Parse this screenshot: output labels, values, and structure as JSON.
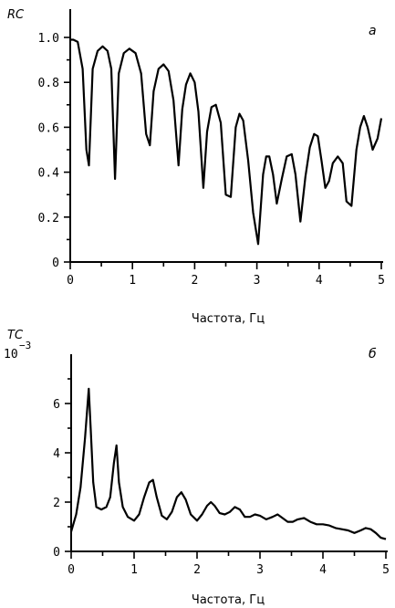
{
  "chart_data": [
    {
      "type": "line",
      "panel_letter": "а",
      "ylabel": "RC",
      "xlabel": "Частота, Гц",
      "xlim": [
        0,
        5
      ],
      "ylim": [
        0,
        1.0
      ],
      "x_ticks": [
        0,
        1,
        2,
        3,
        4,
        5
      ],
      "x_tick_labels": [
        "0",
        "1",
        "2",
        "3",
        "4",
        "5"
      ],
      "y_ticks": [
        0,
        0.2,
        0.4,
        0.6,
        0.8,
        1.0
      ],
      "y_tick_labels": [
        "0",
        "0.2",
        "0.4",
        "0.6",
        "0.8",
        "1.0"
      ],
      "grid": false,
      "series": [
        {
          "x": [
            0.0,
            0.05,
            0.12,
            0.2,
            0.26,
            0.3,
            0.36,
            0.44,
            0.52,
            0.6,
            0.66,
            0.72,
            0.78,
            0.86,
            0.95,
            1.05,
            1.14,
            1.22,
            1.28,
            1.34,
            1.42,
            1.5,
            1.58,
            1.66,
            1.74,
            1.8,
            1.86,
            1.93,
            2.0,
            2.06,
            2.14,
            2.2,
            2.27,
            2.34,
            2.42,
            2.5,
            2.58,
            2.66,
            2.72,
            2.78,
            2.86,
            2.94,
            3.02,
            3.1,
            3.15,
            3.2,
            3.26,
            3.32,
            3.4,
            3.48,
            3.56,
            3.62,
            3.7,
            3.78,
            3.85,
            3.92,
            3.98,
            4.04,
            4.1,
            4.16,
            4.22,
            4.3,
            4.38,
            4.44,
            4.52,
            4.6,
            4.66,
            4.72,
            4.78,
            4.86,
            4.94,
            5.0
          ],
          "y": [
            0.99,
            0.99,
            0.98,
            0.86,
            0.5,
            0.43,
            0.86,
            0.94,
            0.96,
            0.94,
            0.86,
            0.37,
            0.84,
            0.93,
            0.95,
            0.93,
            0.84,
            0.57,
            0.52,
            0.76,
            0.86,
            0.88,
            0.85,
            0.72,
            0.43,
            0.68,
            0.79,
            0.84,
            0.8,
            0.67,
            0.33,
            0.58,
            0.69,
            0.7,
            0.62,
            0.3,
            0.29,
            0.6,
            0.66,
            0.63,
            0.45,
            0.22,
            0.08,
            0.39,
            0.47,
            0.47,
            0.39,
            0.26,
            0.37,
            0.47,
            0.48,
            0.39,
            0.18,
            0.38,
            0.51,
            0.57,
            0.56,
            0.45,
            0.33,
            0.36,
            0.44,
            0.47,
            0.44,
            0.27,
            0.25,
            0.5,
            0.6,
            0.65,
            0.6,
            0.5,
            0.55,
            0.64
          ]
        }
      ]
    },
    {
      "type": "line",
      "panel_letter": "б",
      "ylabel": "TC",
      "y_multiplier": "10",
      "y_multiplier_exp": "−3",
      "xlabel": "Частота, Гц",
      "xlim": [
        0,
        5
      ],
      "ylim": [
        0,
        8
      ],
      "x_ticks": [
        0,
        1,
        2,
        3,
        4,
        5
      ],
      "x_tick_labels": [
        "0",
        "1",
        "2",
        "3",
        "4",
        "5"
      ],
      "y_ticks": [
        0,
        2,
        4,
        6
      ],
      "y_tick_labels": [
        "0",
        "2",
        "4",
        "6"
      ],
      "grid": false,
      "series": [
        {
          "x": [
            0.0,
            0.08,
            0.15,
            0.22,
            0.28,
            0.31,
            0.35,
            0.4,
            0.48,
            0.56,
            0.62,
            0.68,
            0.72,
            0.76,
            0.82,
            0.9,
            1.0,
            1.08,
            1.16,
            1.24,
            1.3,
            1.36,
            1.44,
            1.52,
            1.6,
            1.68,
            1.75,
            1.82,
            1.9,
            2.0,
            2.08,
            2.16,
            2.22,
            2.28,
            2.36,
            2.44,
            2.52,
            2.6,
            2.68,
            2.76,
            2.84,
            2.92,
            3.0,
            3.1,
            3.2,
            3.28,
            3.36,
            3.44,
            3.52,
            3.6,
            3.7,
            3.8,
            3.9,
            4.0,
            4.1,
            4.2,
            4.3,
            4.4,
            4.5,
            4.6,
            4.68,
            4.76,
            4.84,
            4.92,
            5.0
          ],
          "y": [
            0.8,
            1.5,
            2.6,
            4.6,
            6.6,
            5.0,
            2.8,
            1.8,
            1.7,
            1.8,
            2.2,
            3.6,
            4.3,
            2.8,
            1.8,
            1.4,
            1.25,
            1.5,
            2.2,
            2.8,
            2.9,
            2.2,
            1.45,
            1.3,
            1.6,
            2.2,
            2.4,
            2.1,
            1.5,
            1.25,
            1.5,
            1.85,
            2.0,
            1.85,
            1.55,
            1.5,
            1.6,
            1.8,
            1.7,
            1.4,
            1.4,
            1.5,
            1.45,
            1.3,
            1.4,
            1.5,
            1.35,
            1.2,
            1.2,
            1.3,
            1.35,
            1.2,
            1.1,
            1.1,
            1.05,
            0.95,
            0.9,
            0.85,
            0.75,
            0.85,
            0.95,
            0.9,
            0.75,
            0.55,
            0.5
          ]
        }
      ]
    }
  ]
}
